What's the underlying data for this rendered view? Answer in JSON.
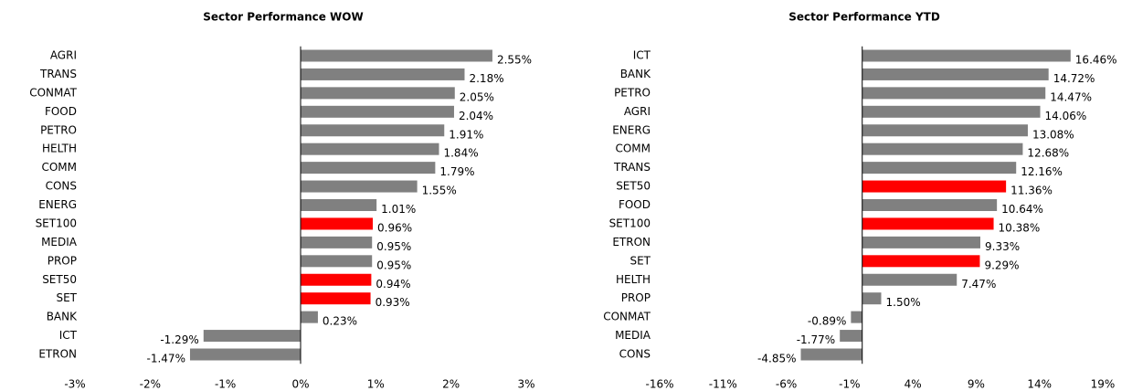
{
  "chart_data": [
    {
      "type": "bar",
      "orientation": "horizontal",
      "title": "Sector Performance WOW",
      "categories": [
        "AGRI",
        "TRANS",
        "CONMAT",
        "FOOD",
        "PETRO",
        "HELTH",
        "COMM",
        "CONS",
        "ENERG",
        "SET100",
        "MEDIA",
        "PROP",
        "SET50",
        "SET",
        "BANK",
        "ICT",
        "ETRON"
      ],
      "values": [
        2.55,
        2.18,
        2.05,
        2.04,
        1.91,
        1.84,
        1.79,
        1.55,
        1.01,
        0.96,
        0.95,
        0.95,
        0.94,
        0.93,
        0.23,
        -1.29,
        -1.47
      ],
      "value_labels": [
        "2.55%",
        "2.18%",
        "2.05%",
        "2.04%",
        "1.91%",
        "1.84%",
        "1.79%",
        "1.55%",
        "1.01%",
        "0.96%",
        "0.95%",
        "0.95%",
        "0.94%",
        "0.93%",
        "0.23%",
        "-1.29%",
        "-1.47%"
      ],
      "colors": [
        "#808080",
        "#808080",
        "#808080",
        "#808080",
        "#808080",
        "#808080",
        "#808080",
        "#808080",
        "#808080",
        "#ff0000",
        "#808080",
        "#808080",
        "#ff0000",
        "#ff0000",
        "#808080",
        "#808080",
        "#808080"
      ],
      "xlim": [
        -3,
        3
      ],
      "xticks": [
        {
          "value": -3,
          "label": "-3%"
        },
        {
          "value": -2,
          "label": "-2%"
        },
        {
          "value": -1,
          "label": "-1%"
        },
        {
          "value": 0,
          "label": "0%"
        },
        {
          "value": 1,
          "label": "1%"
        },
        {
          "value": 2,
          "label": "2%"
        },
        {
          "value": 3,
          "label": "3%"
        }
      ]
    },
    {
      "type": "bar",
      "orientation": "horizontal",
      "title": "Sector Performance YTD",
      "categories": [
        "ICT",
        "BANK",
        "PETRO",
        "AGRI",
        "ENERG",
        "COMM",
        "TRANS",
        "SET50",
        "FOOD",
        "SET100",
        "ETRON",
        "SET",
        "HELTH",
        "PROP",
        "CONMAT",
        "MEDIA",
        "CONS"
      ],
      "values": [
        16.46,
        14.72,
        14.47,
        14.06,
        13.08,
        12.68,
        12.16,
        11.36,
        10.64,
        10.38,
        9.33,
        9.29,
        7.47,
        1.5,
        -0.89,
        -1.77,
        -4.85
      ],
      "value_labels": [
        "16.46%",
        "14.72%",
        "14.47%",
        "14.06%",
        "13.08%",
        "12.68%",
        "12.16%",
        "11.36%",
        "10.64%",
        "10.38%",
        "9.33%",
        "9.29%",
        "7.47%",
        "1.50%",
        "-0.89%",
        "-1.77%",
        "-4.85%"
      ],
      "colors": [
        "#808080",
        "#808080",
        "#808080",
        "#808080",
        "#808080",
        "#808080",
        "#808080",
        "#ff0000",
        "#808080",
        "#ff0000",
        "#808080",
        "#ff0000",
        "#808080",
        "#808080",
        "#808080",
        "#808080",
        "#808080"
      ],
      "xlim": [
        -16,
        19
      ],
      "xticks": [
        {
          "value": -16,
          "label": "-16%"
        },
        {
          "value": -11,
          "label": "-11%"
        },
        {
          "value": -6,
          "label": "-6%"
        },
        {
          "value": -1,
          "label": "-1%"
        },
        {
          "value": 4,
          "label": "4%"
        },
        {
          "value": 9,
          "label": "9%"
        },
        {
          "value": 14,
          "label": "14%"
        },
        {
          "value": 19,
          "label": "19%"
        }
      ]
    }
  ]
}
